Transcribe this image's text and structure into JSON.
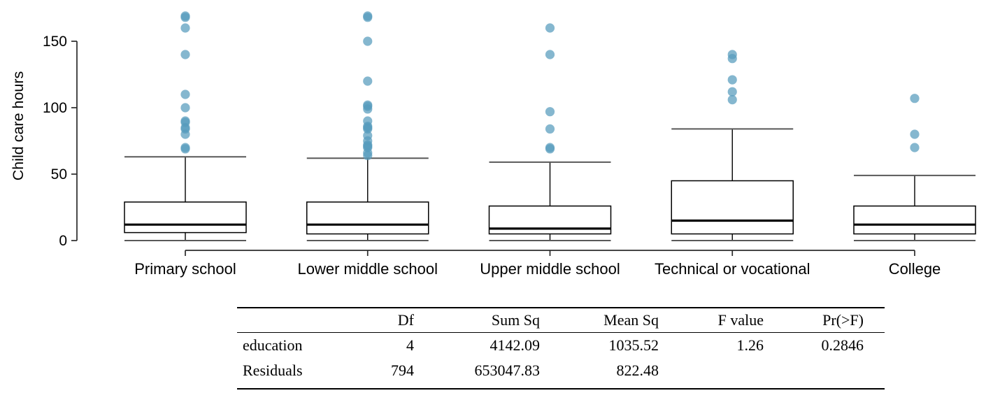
{
  "figure": {
    "background": "#ffffff",
    "text_color": "#000000"
  },
  "chart_data": {
    "type": "boxplot",
    "title": "",
    "xlabel": "",
    "ylabel": "Child care hours",
    "ylim": [
      0,
      172
    ],
    "yticks": [
      0,
      50,
      100,
      150
    ],
    "grid": false,
    "legend": "none",
    "categories": [
      "Primary school",
      "Lower middle school",
      "Upper middle school",
      "Technical or vocational",
      "College"
    ],
    "series": [
      {
        "category": "Primary school",
        "min": 0,
        "q1": 6,
        "median": 12,
        "q3": 29,
        "max": 63,
        "outliers": [
          169,
          168,
          160,
          140,
          110,
          100,
          90,
          89,
          85,
          84,
          80,
          70,
          69
        ]
      },
      {
        "category": "Lower middle school",
        "min": 0,
        "q1": 5,
        "median": 12,
        "q3": 29,
        "max": 62,
        "outliers": [
          169,
          168,
          150,
          120,
          102,
          101,
          99,
          90,
          86,
          85,
          84,
          79,
          75,
          72,
          71,
          70,
          66,
          64
        ]
      },
      {
        "category": "Upper middle school",
        "min": 0,
        "q1": 5,
        "median": 9,
        "q3": 26,
        "max": 59,
        "outliers": [
          160,
          140,
          97,
          84,
          70,
          69
        ]
      },
      {
        "category": "Technical or vocational",
        "min": 0,
        "q1": 5,
        "median": 15,
        "q3": 45,
        "max": 84,
        "outliers": [
          140,
          137,
          121,
          112,
          106
        ]
      },
      {
        "category": "College",
        "min": 0,
        "q1": 5,
        "median": 12,
        "q3": 26,
        "max": 49,
        "outliers": [
          107,
          80,
          70
        ]
      }
    ],
    "style": {
      "outlier_dot_color": "#569BBD",
      "outlier_dot_opacity": 0.72,
      "box_fill": "#ffffff",
      "box_line_color": "#000000",
      "median_color": "#000000",
      "whisker_line_color": "#000000",
      "whisker_cap_color": "#595959",
      "axis_color": "#2b2b2b"
    }
  },
  "anova_table": {
    "columns": [
      "",
      "Df",
      "Sum Sq",
      "Mean Sq",
      "F value",
      "Pr(>F)"
    ],
    "rows": [
      [
        "education",
        "4",
        "4142.09",
        "1035.52",
        "1.26",
        "0.2846"
      ],
      [
        "Residuals",
        "794",
        "653047.83",
        "822.48",
        "",
        ""
      ]
    ]
  }
}
